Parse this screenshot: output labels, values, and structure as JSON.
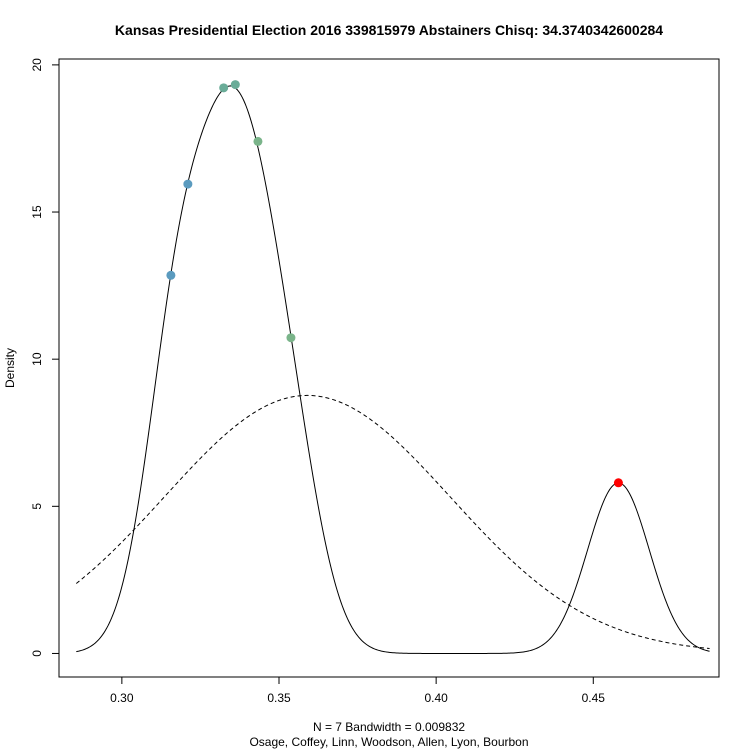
{
  "chart_data": {
    "type": "line",
    "title": "Kansas Presidential Election 2016 339815979 Abstainers Chisq: 34.3740342600284",
    "xlabel_line1": "N = 7   Bandwidth = 0.009832",
    "xlabel_line2": "Osage, Coffey, Linn, Woodson, Allen, Lyon, Bourbon",
    "ylabel": "Density",
    "xlim": [
      0.28,
      0.49
    ],
    "ylim": [
      -0.8,
      20.2
    ],
    "xticks": [
      0.3,
      0.35,
      0.4,
      0.45
    ],
    "xtick_labels": [
      "0.30",
      "0.35",
      "0.40",
      "0.45"
    ],
    "yticks": [
      0,
      5,
      10,
      15,
      20
    ],
    "ytick_labels": [
      "0",
      "5",
      "10",
      "15",
      "20"
    ],
    "grid": false,
    "kde_bandwidth": 0.009832,
    "kde_x_range": [
      0.2855,
      0.487
    ],
    "observations": [
      0.3156,
      0.321,
      0.3324,
      0.3361,
      0.3433,
      0.3538,
      0.458
    ],
    "normal_reference": {
      "mean": 0.359,
      "sd": 0.0455,
      "style": "dashed"
    },
    "points": [
      {
        "x": 0.3156,
        "y": 12.85,
        "color": "#5b9bbf"
      },
      {
        "x": 0.321,
        "y": 15.95,
        "color": "#5b9bbf"
      },
      {
        "x": 0.3324,
        "y": 19.22,
        "color": "#6aac98"
      },
      {
        "x": 0.3361,
        "y": 19.33,
        "color": "#6aac98"
      },
      {
        "x": 0.3433,
        "y": 17.4,
        "color": "#7ab48a"
      },
      {
        "x": 0.3538,
        "y": 10.73,
        "color": "#7ab48a"
      },
      {
        "x": 0.458,
        "y": 5.8,
        "color": "#ff0000"
      }
    ]
  }
}
